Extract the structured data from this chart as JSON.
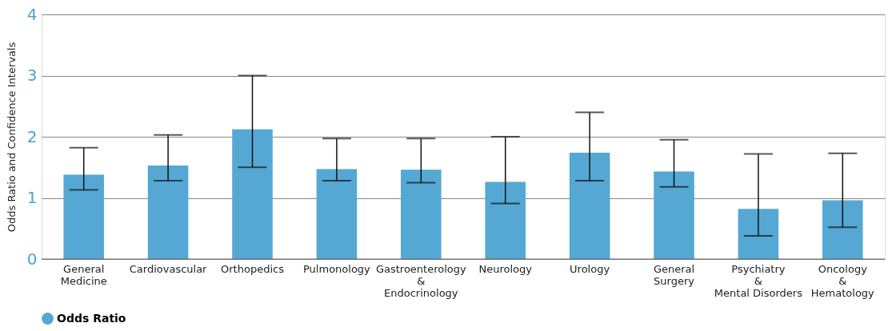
{
  "chart_data": {
    "type": "bar",
    "ylabel": "Odds Ratio and Confidence Intervals",
    "categories": [
      "General\nMedicine",
      "Cardiovascular",
      "Orthopedics",
      "Pulmonology",
      "Gastroenterology\n&\nEndocrinology",
      "Neurology",
      "Urology",
      "General\nSurgery",
      "Psychiatry\n&\nMental Disorders",
      "Oncology\n&\nHematology"
    ],
    "series": [
      {
        "name": "Odds Ratio",
        "color": "#55a8d3",
        "values": [
          1.38,
          1.53,
          2.12,
          1.47,
          1.46,
          1.26,
          1.74,
          1.43,
          0.82,
          0.96
        ],
        "errors": [
          [
            1.13,
            1.82
          ],
          [
            1.28,
            2.03
          ],
          [
            1.5,
            3.0
          ],
          [
            1.28,
            1.97
          ],
          [
            1.25,
            1.97
          ],
          [
            0.91,
            2.0
          ],
          [
            1.28,
            2.4
          ],
          [
            1.18,
            1.95
          ],
          [
            0.38,
            1.72
          ],
          [
            0.52,
            1.73
          ]
        ]
      }
    ],
    "ylim": [
      0,
      4
    ],
    "yticks": [
      0,
      1,
      2,
      3,
      4
    ],
    "grid": "y",
    "legend": "bottom"
  }
}
